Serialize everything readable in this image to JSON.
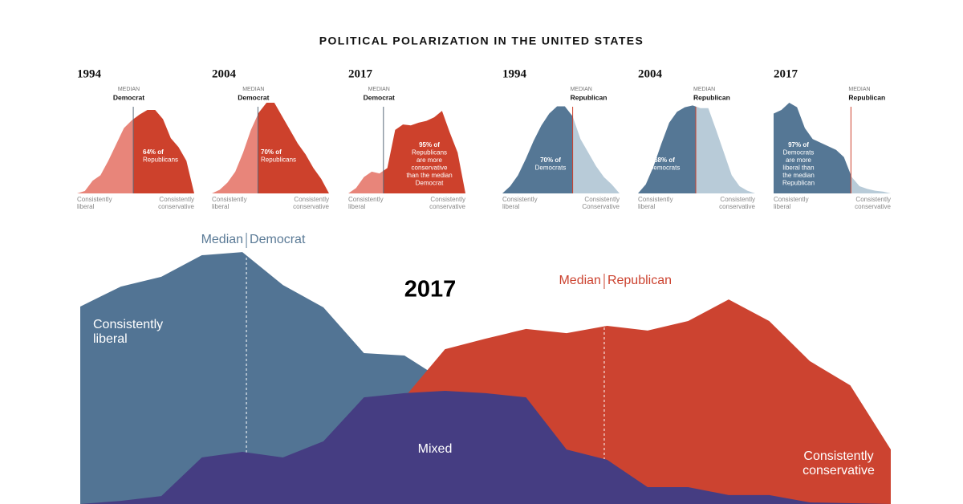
{
  "title": "POLITICAL POLARIZATION IN THE UNITED STATES",
  "chart_data": [
    {
      "type": "split-area",
      "title": "1994",
      "median_label": "MEDIAN",
      "median_party": "Democrat",
      "median": 7.2,
      "median_color": "#5b6b7b",
      "note": [
        "64% of",
        "Republicans"
      ],
      "x_labels": [
        "Consistently liberal",
        "Consistently conservative"
      ],
      "colors": [
        "#e8857a",
        "#cd412c"
      ],
      "ylim": [
        0,
        100
      ],
      "values": [
        0,
        2.7,
        14,
        20,
        36,
        54,
        72,
        80.5,
        87,
        92,
        92,
        82,
        61,
        51,
        36,
        0
      ]
    },
    {
      "type": "split-area",
      "title": "2004",
      "median_label": "MEDIAN",
      "median_party": "Democrat",
      "median": 5.9,
      "median_color": "#5b6b7b",
      "note": [
        "70% of",
        "Republicans"
      ],
      "x_labels": [
        "Consistently liberal",
        "Consistently conservative"
      ],
      "colors": [
        "#e8857a",
        "#cd412c"
      ],
      "ylim": [
        0,
        100
      ],
      "values": [
        0,
        4,
        12,
        24,
        45,
        70,
        89,
        100,
        100,
        85,
        70,
        55,
        43,
        28,
        16,
        0
      ]
    },
    {
      "type": "split-area",
      "title": "2017",
      "median_label": "MEDIAN",
      "median_party": "Democrat",
      "median": 4.5,
      "median_color": "#5b6b7b",
      "note": [
        "95% of",
        "Republicans",
        "are more",
        "conservative",
        "than the median",
        "Democrat"
      ],
      "x_labels": [
        "Consistently liberal",
        "Consistently conservative"
      ],
      "colors": [
        "#e8857a",
        "#cd412c"
      ],
      "ylim": [
        0,
        100
      ],
      "values": [
        0,
        6,
        18,
        24,
        22,
        28,
        70,
        76,
        75,
        78,
        80,
        84,
        91,
        67,
        45,
        0
      ]
    },
    {
      "type": "split-area",
      "title": "1994",
      "median_label": "MEDIAN",
      "median_party": "Republican",
      "median": 9.0,
      "median_color": "#cd412c",
      "note": [
        "70% of",
        "Democrats"
      ],
      "x_labels": [
        "Consistently liberal",
        "Consistently Conservative"
      ],
      "colors": [
        "#557795",
        "#b8cbd8"
      ],
      "ylim": [
        0,
        100
      ],
      "values": [
        0,
        8,
        20,
        38,
        58,
        75,
        88,
        96,
        96,
        85,
        60,
        45,
        30,
        18,
        10,
        0
      ]
    },
    {
      "type": "split-area",
      "title": "2004",
      "median_label": "MEDIAN",
      "median_party": "Republican",
      "median": 7.4,
      "median_color": "#cd412c",
      "note": [
        "68% of",
        "Democrats"
      ],
      "x_labels": [
        "Consistently liberal",
        "Consistently conservative"
      ],
      "colors": [
        "#557795",
        "#b8cbd8"
      ],
      "ylim": [
        0,
        100
      ],
      "values": [
        0,
        10,
        30,
        55,
        78,
        90,
        95,
        97,
        94,
        94,
        70,
        45,
        20,
        8,
        3,
        0
      ]
    },
    {
      "type": "split-area",
      "title": "2017",
      "median_label": "MEDIAN",
      "median_party": "Republican",
      "median": 9.9,
      "median_color": "#cd412c",
      "note": [
        "97% of",
        "Democrats",
        "are more",
        "liberal than",
        "the median",
        "Republican"
      ],
      "x_labels": [
        "Consistently liberal",
        "Consistently conservative"
      ],
      "colors": [
        "#557795",
        "#b8cbd8"
      ],
      "ylim": [
        0,
        100
      ],
      "values": [
        88,
        92,
        100,
        95,
        72,
        60,
        56,
        52,
        48,
        40,
        18,
        8,
        5,
        3,
        2,
        0
      ]
    },
    {
      "type": "overlap-area",
      "title": "2017",
      "xlim": [
        0,
        20
      ],
      "ylim": [
        0,
        100
      ],
      "series": [
        {
          "name": "Consistently liberal",
          "color": "#527494",
          "values": [
            75,
            82.6,
            86.3,
            94.5,
            95.7,
            83.2,
            74.7,
            57.3,
            56.4,
            46.6,
            36,
            26.8,
            17.7,
            11.6,
            7,
            5.5,
            4,
            2.4,
            0.9,
            0.3,
            0
          ]
        },
        {
          "name": "Consistently conservative",
          "color": "#cc4330",
          "values": [
            0,
            0.3,
            0.6,
            1.2,
            2.4,
            4.9,
            8.5,
            17.7,
            40.5,
            58.8,
            62.8,
            66.5,
            64.9,
            67.7,
            65.9,
            69.5,
            77.7,
            69.5,
            54.3,
            45.1,
            20.7
          ]
        },
        {
          "name": "Mixed",
          "color": "#453d82",
          "values": [
            0,
            1.2,
            3,
            17.7,
            19.8,
            17.7,
            23.8,
            40.5,
            42.1,
            43,
            42.1,
            40.5,
            20.7,
            16.8,
            6.4,
            6.4,
            3.4,
            3.4,
            0.6,
            0.3,
            0
          ]
        }
      ],
      "medians": [
        {
          "label": [
            "Median",
            "Democrat"
          ],
          "x": 4.1,
          "color": "#5a7a96"
        },
        {
          "label": [
            "Median",
            "Republican"
          ],
          "x": 12.93,
          "color": "#cc4330"
        }
      ]
    }
  ]
}
